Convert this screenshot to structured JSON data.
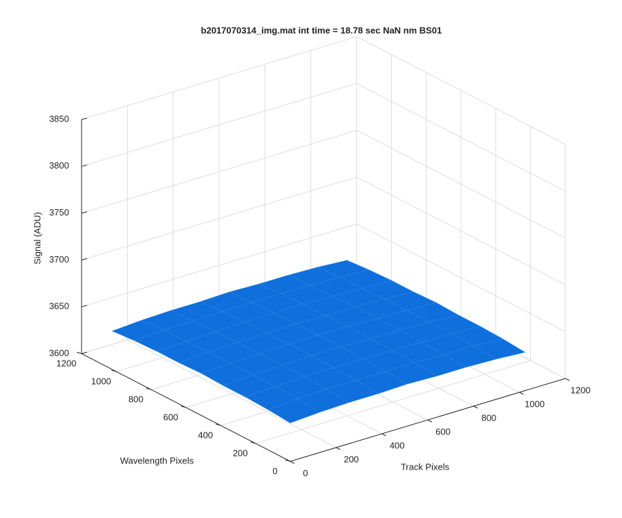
{
  "chart_data": {
    "type": "surface",
    "title": "b2017070314_img.mat int time = 18.78 sec  NaN nm BS01",
    "xlabel": "Track Pixels",
    "ylabel": "Wavelength Pixels",
    "zlabel": "Signal (ADU)",
    "x": [
      0,
      128,
      256,
      384,
      512,
      640,
      768,
      896,
      1024
    ],
    "y": [
      0,
      128,
      256,
      384,
      512,
      640,
      768,
      896,
      1024
    ],
    "z": [
      [
        3641,
        3643,
        3644,
        3644,
        3645,
        3644,
        3644,
        3643,
        3641
      ],
      [
        3643,
        3645,
        3646,
        3646,
        3646,
        3646,
        3645,
        3645,
        3643
      ],
      [
        3644,
        3646,
        3647,
        3647,
        3647,
        3647,
        3646,
        3646,
        3644
      ],
      [
        3644,
        3646,
        3647,
        3648,
        3648,
        3647,
        3647,
        3646,
        3644
      ],
      [
        3645,
        3646,
        3647,
        3648,
        3648,
        3648,
        3647,
        3646,
        3645
      ],
      [
        3644,
        3646,
        3647,
        3647,
        3648,
        3647,
        3647,
        3646,
        3644
      ],
      [
        3644,
        3645,
        3646,
        3647,
        3647,
        3647,
        3646,
        3645,
        3644
      ],
      [
        3643,
        3645,
        3645,
        3646,
        3646,
        3646,
        3645,
        3645,
        3643
      ],
      [
        3641,
        3643,
        3644,
        3644,
        3645,
        3644,
        3644,
        3643,
        3641
      ]
    ],
    "color": "#0f6fdc",
    "xlim": [
      0,
      1200
    ],
    "ylim": [
      0,
      1200
    ],
    "zlim": [
      3600,
      3850
    ],
    "xticks": [
      0,
      200,
      400,
      600,
      800,
      1000,
      1200
    ],
    "yticks": [
      0,
      200,
      400,
      600,
      800,
      1000,
      1200
    ],
    "zticks": [
      3600,
      3650,
      3700,
      3750,
      3800,
      3850
    ],
    "grid": true
  }
}
